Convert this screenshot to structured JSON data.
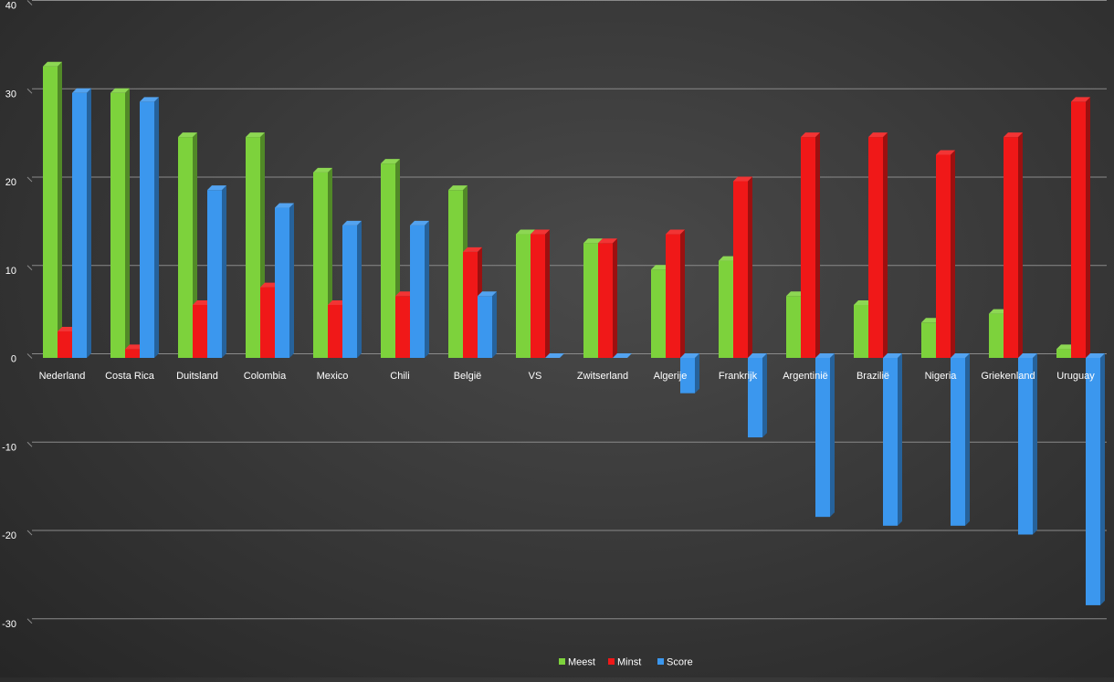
{
  "chart_data": {
    "type": "bar",
    "title": "",
    "xlabel": "",
    "ylabel": "",
    "ylim": [
      -30,
      40
    ],
    "yticks": [
      -30,
      -20,
      -10,
      0,
      10,
      20,
      30,
      40
    ],
    "grid": true,
    "legend_position": "bottom-center",
    "categories": [
      "Nederland",
      "Costa Rica",
      "Duitsland",
      "Colombia",
      "Mexico",
      "Chili",
      "België",
      "VS",
      "Zwitserland",
      "Algerije",
      "Frankrijk",
      "Argentinië",
      "Brazilië",
      "Nigeria",
      "Griekenland",
      "Uruguay"
    ],
    "series": [
      {
        "name": "Meest",
        "color": "#7dd23c",
        "values": [
          33,
          30,
          25,
          25,
          21,
          22,
          19,
          14,
          13,
          10,
          11,
          7,
          6,
          4,
          5,
          1
        ]
      },
      {
        "name": "Minst",
        "color": "#f01818",
        "values": [
          3,
          1,
          6,
          8,
          6,
          7,
          12,
          14,
          13,
          14,
          20,
          25,
          25,
          23,
          25,
          29
        ]
      },
      {
        "name": "Score",
        "color": "#3b97ee",
        "values": [
          30,
          29,
          19,
          17,
          15,
          15,
          7,
          0,
          0,
          -4,
          -9,
          -18,
          -19,
          -19,
          -20,
          -28
        ]
      }
    ]
  }
}
